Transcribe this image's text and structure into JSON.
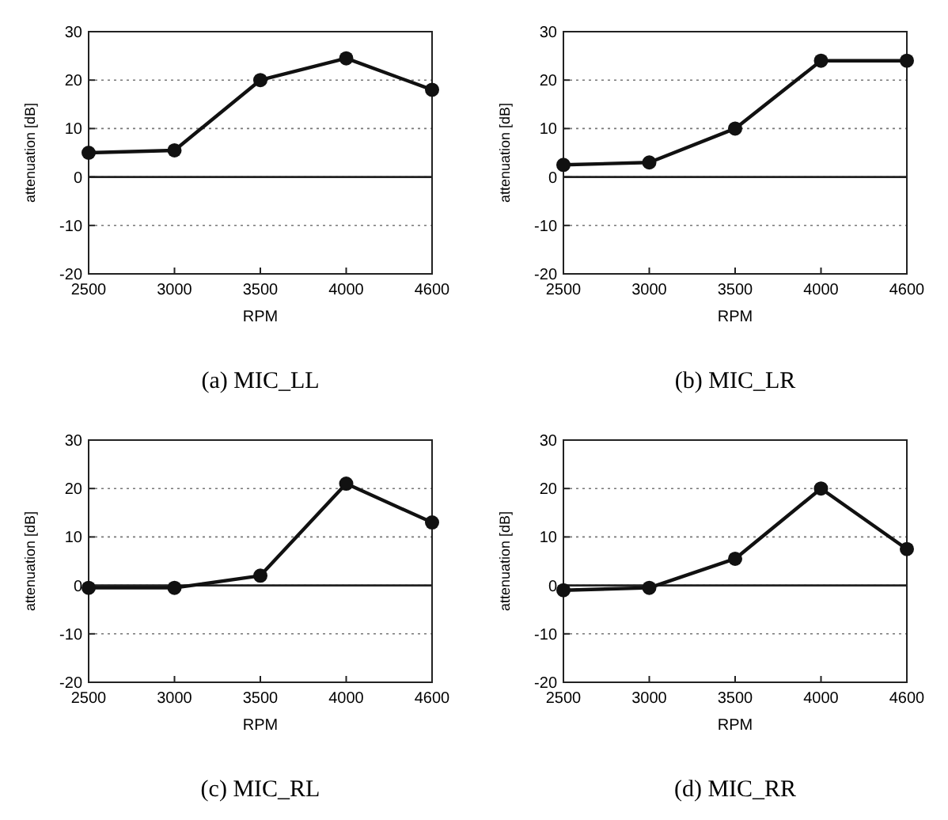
{
  "chart_data": [
    {
      "type": "line",
      "title": "(a) MIC_LL",
      "xlabel": "RPM",
      "ylabel": "attenuation [dB]",
      "categories": [
        "2500",
        "3000",
        "3500",
        "4000",
        "4600"
      ],
      "series": [
        {
          "color": "#111111",
          "values": [
            5,
            5.5,
            20,
            24.5,
            18
          ]
        }
      ],
      "ylim": [
        -20,
        30
      ],
      "yticks": [
        -20,
        -10,
        0,
        10,
        20,
        30
      ],
      "grid": "y",
      "marker": "circle",
      "ref_lines": [
        {
          "axis": "y",
          "value": 0
        }
      ]
    },
    {
      "type": "line",
      "title": "(b) MIC_LR",
      "xlabel": "RPM",
      "ylabel": "attenuation [dB]",
      "categories": [
        "2500",
        "3000",
        "3500",
        "4000",
        "4600"
      ],
      "series": [
        {
          "color": "#111111",
          "values": [
            2.5,
            3,
            10,
            24,
            24
          ]
        }
      ],
      "ylim": [
        -20,
        30
      ],
      "yticks": [
        -20,
        -10,
        0,
        10,
        20,
        30
      ],
      "grid": "y",
      "marker": "circle",
      "ref_lines": [
        {
          "axis": "y",
          "value": 0
        }
      ]
    },
    {
      "type": "line",
      "title": "(c) MIC_RL",
      "xlabel": "RPM",
      "ylabel": "attenuation [dB]",
      "categories": [
        "2500",
        "3000",
        "3500",
        "4000",
        "4600"
      ],
      "series": [
        {
          "color": "#111111",
          "values": [
            -0.5,
            -0.5,
            2,
            21,
            13
          ]
        }
      ],
      "ylim": [
        -20,
        30
      ],
      "yticks": [
        -20,
        -10,
        0,
        10,
        20,
        30
      ],
      "grid": "y",
      "marker": "circle",
      "ref_lines": [
        {
          "axis": "y",
          "value": 0
        }
      ]
    },
    {
      "type": "line",
      "title": "(d) MIC_RR",
      "xlabel": "RPM",
      "ylabel": "attenuation [dB]",
      "categories": [
        "2500",
        "3000",
        "3500",
        "4000",
        "4600"
      ],
      "series": [
        {
          "color": "#111111",
          "values": [
            -1,
            -0.5,
            5.5,
            20,
            7.5
          ]
        }
      ],
      "ylim": [
        -20,
        30
      ],
      "yticks": [
        -20,
        -10,
        0,
        10,
        20,
        30
      ],
      "grid": "y",
      "marker": "circle",
      "ref_lines": [
        {
          "axis": "y",
          "value": 0
        }
      ]
    }
  ]
}
